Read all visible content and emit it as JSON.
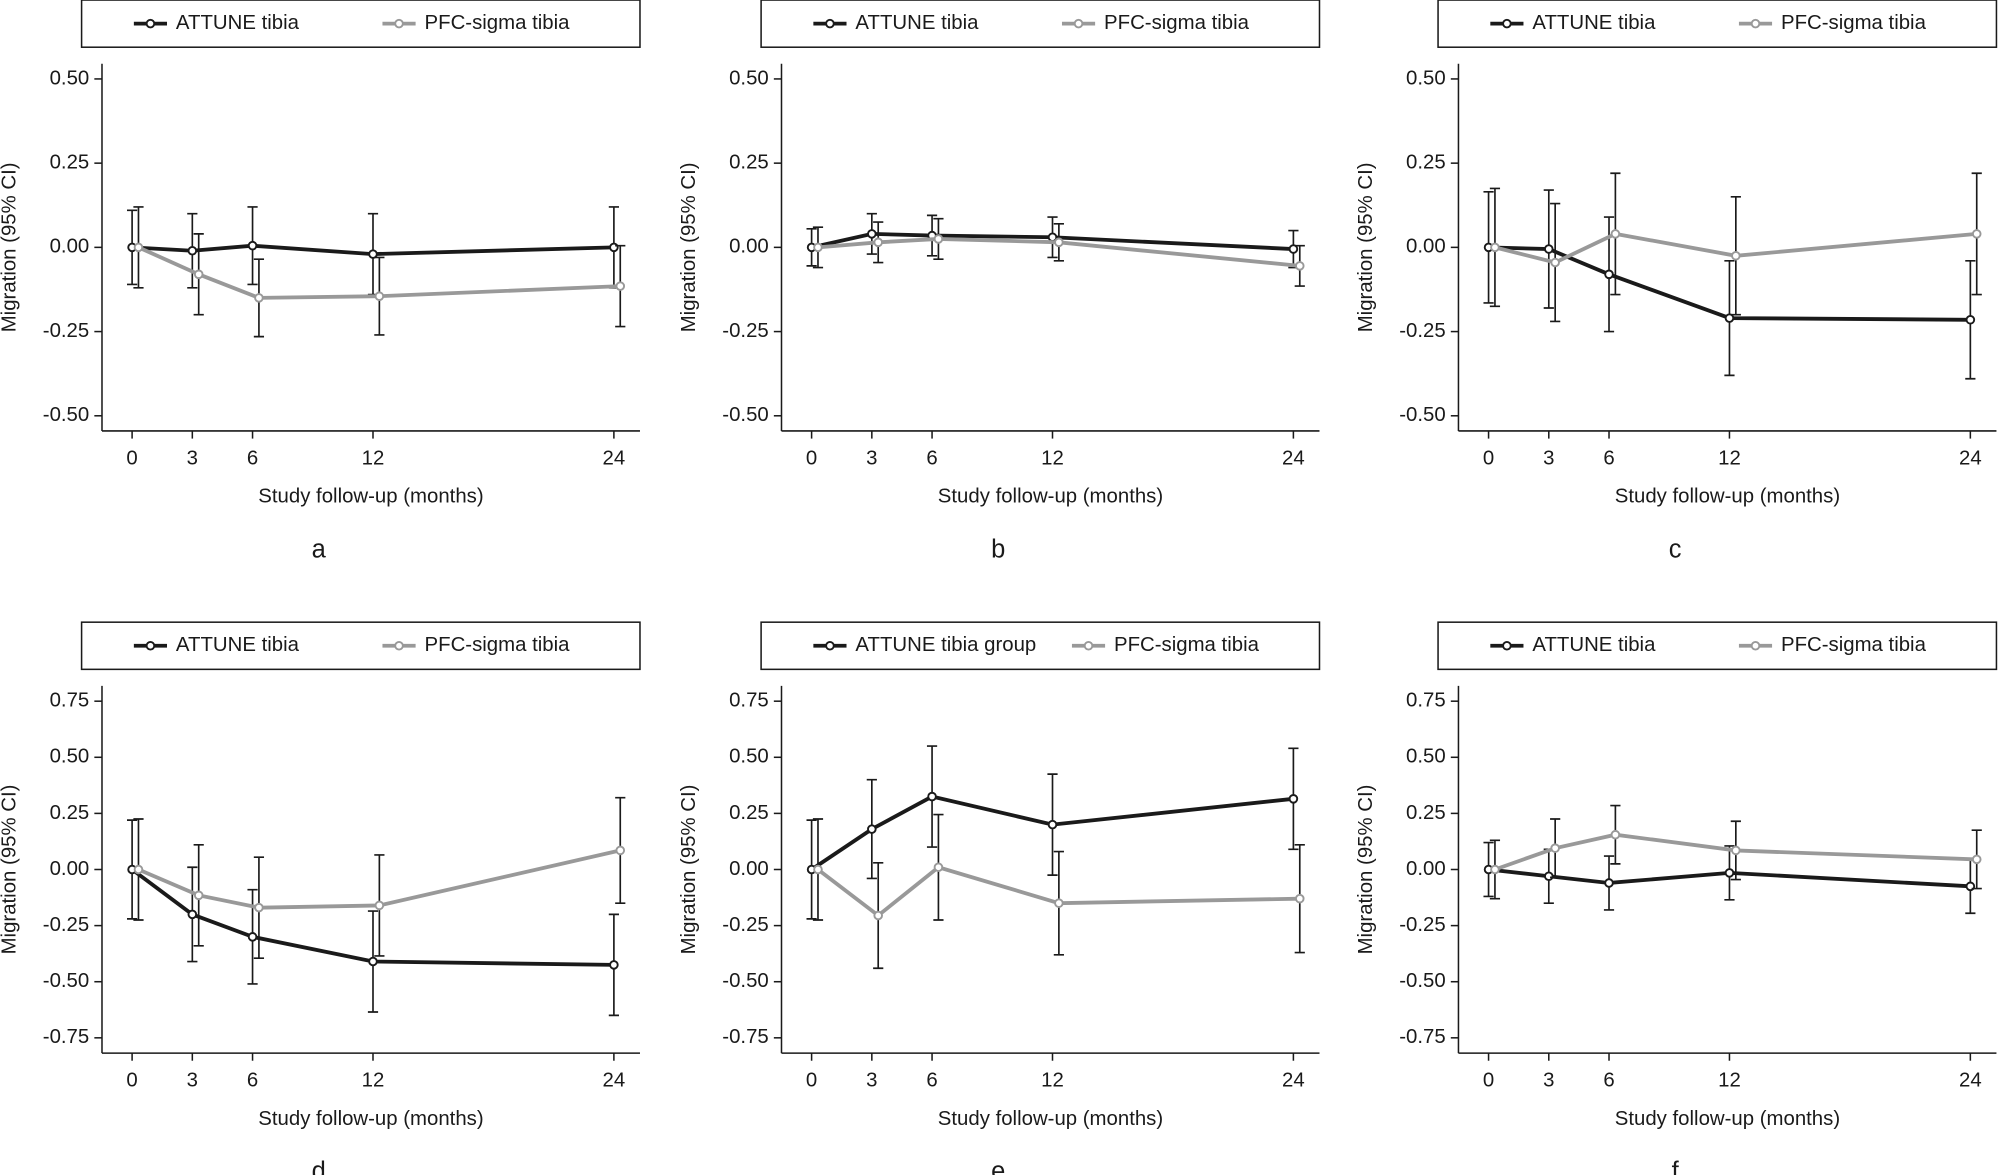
{
  "chart_data": [
    {
      "type": "line",
      "panel": "a",
      "x_label": "Study follow-up (months)",
      "y_label": "Migration (95% CI)",
      "xlim": [
        -1.5,
        25.3
      ],
      "ylim": [
        -0.545,
        0.545
      ],
      "x": [
        0,
        3,
        6,
        12,
        24
      ],
      "xticks": [
        0,
        3,
        6,
        12,
        24
      ],
      "yticks": [
        {
          "value": -0.5,
          "label": "-0.50"
        },
        {
          "value": -0.25,
          "label": "-0.25"
        },
        {
          "value": 0,
          "label": "0.00"
        },
        {
          "value": 0.25,
          "label": "0.25"
        },
        {
          "value": 0.5,
          "label": "0.50"
        }
      ],
      "series": [
        {
          "name": "ATTUNE tibia",
          "color": "#1a1a1a",
          "values": [
            0,
            -0.01,
            0.005,
            -0.02,
            0
          ],
          "errors": [
            0.11,
            0.11,
            0.115,
            0.12,
            0.12
          ]
        },
        {
          "name": "PFC-sigma tibia",
          "color": "#999999",
          "values": [
            0,
            -0.08,
            -0.15,
            -0.145,
            -0.115
          ],
          "errors": [
            0.12,
            0.12,
            0.115,
            0.115,
            0.12
          ]
        }
      ]
    },
    {
      "type": "line",
      "panel": "b",
      "x_label": "Study follow-up (months)",
      "y_label": "Migration (95% CI)",
      "xlim": [
        -1.5,
        25.3
      ],
      "ylim": [
        -0.545,
        0.545
      ],
      "x": [
        0,
        3,
        6,
        12,
        24
      ],
      "xticks": [
        0,
        3,
        6,
        12,
        24
      ],
      "yticks": [
        {
          "value": -0.5,
          "label": "-0.50"
        },
        {
          "value": -0.25,
          "label": "-0.25"
        },
        {
          "value": 0,
          "label": "0.00"
        },
        {
          "value": 0.25,
          "label": "0.25"
        },
        {
          "value": 0.5,
          "label": "0.50"
        }
      ],
      "series": [
        {
          "name": "ATTUNE tibia",
          "color": "#1a1a1a",
          "values": [
            0,
            0.04,
            0.035,
            0.03,
            -0.005
          ],
          "errors": [
            0.055,
            0.06,
            0.06,
            0.06,
            0.055
          ]
        },
        {
          "name": "PFC-sigma tibia",
          "color": "#999999",
          "values": [
            0,
            0.015,
            0.025,
            0.015,
            -0.055
          ],
          "errors": [
            0.06,
            0.06,
            0.06,
            0.055,
            0.06
          ]
        }
      ]
    },
    {
      "type": "line",
      "panel": "c",
      "x_label": "Study follow-up (months)",
      "y_label": "Migration (95% CI)",
      "xlim": [
        -1.5,
        25.3
      ],
      "ylim": [
        -0.545,
        0.545
      ],
      "x": [
        0,
        3,
        6,
        12,
        24
      ],
      "xticks": [
        0,
        3,
        6,
        12,
        24
      ],
      "yticks": [
        {
          "value": -0.5,
          "label": "-0.50"
        },
        {
          "value": -0.25,
          "label": "-0.25"
        },
        {
          "value": 0,
          "label": "0.00"
        },
        {
          "value": 0.25,
          "label": "0.25"
        },
        {
          "value": 0.5,
          "label": "0.50"
        }
      ],
      "series": [
        {
          "name": "ATTUNE tibia",
          "color": "#1a1a1a",
          "values": [
            0,
            -0.005,
            -0.08,
            -0.21,
            -0.215
          ],
          "errors": [
            0.165,
            0.175,
            0.17,
            0.17,
            0.175
          ]
        },
        {
          "name": "PFC-sigma tibia",
          "color": "#999999",
          "values": [
            0,
            -0.045,
            0.04,
            -0.025,
            0.04
          ],
          "errors": [
            0.175,
            0.175,
            0.18,
            0.175,
            0.18
          ]
        }
      ]
    },
    {
      "type": "line",
      "panel": "d",
      "x_label": "Study follow-up (months)",
      "y_label": "Migration (95% CI)",
      "xlim": [
        -1.5,
        25.3
      ],
      "ylim": [
        -0.818,
        0.818
      ],
      "x": [
        0,
        3,
        6,
        12,
        24
      ],
      "xticks": [
        0,
        3,
        6,
        12,
        24
      ],
      "yticks": [
        {
          "value": -0.75,
          "label": "-0.75"
        },
        {
          "value": -0.5,
          "label": "-0.50"
        },
        {
          "value": -0.25,
          "label": "-0.25"
        },
        {
          "value": 0,
          "label": "0.00"
        },
        {
          "value": 0.25,
          "label": "0.25"
        },
        {
          "value": 0.5,
          "label": "0.50"
        },
        {
          "value": 0.75,
          "label": "0.75"
        }
      ],
      "series": [
        {
          "name": "ATTUNE tibia",
          "color": "#1a1a1a",
          "values": [
            0,
            -0.2,
            -0.3,
            -0.41,
            -0.425
          ],
          "errors": [
            0.22,
            0.21,
            0.21,
            0.225,
            0.225
          ]
        },
        {
          "name": "PFC-sigma tibia",
          "color": "#999999",
          "values": [
            0,
            -0.115,
            -0.17,
            -0.16,
            0.085
          ],
          "errors": [
            0.225,
            0.225,
            0.225,
            0.225,
            0.235
          ]
        }
      ]
    },
    {
      "type": "line",
      "panel": "e",
      "x_label": "Study follow-up (months)",
      "y_label": "Migration (95% CI)",
      "xlim": [
        -1.5,
        25.3
      ],
      "ylim": [
        -0.818,
        0.818
      ],
      "x": [
        0,
        3,
        6,
        12,
        24
      ],
      "xticks": [
        0,
        3,
        6,
        12,
        24
      ],
      "yticks": [
        {
          "value": -0.75,
          "label": "-0.75"
        },
        {
          "value": -0.5,
          "label": "-0.50"
        },
        {
          "value": -0.25,
          "label": "-0.25"
        },
        {
          "value": 0,
          "label": "0.00"
        },
        {
          "value": 0.25,
          "label": "0.25"
        },
        {
          "value": 0.5,
          "label": "0.50"
        },
        {
          "value": 0.75,
          "label": "0.75"
        }
      ],
      "series": [
        {
          "name": "ATTUNE tibia group",
          "color": "#1a1a1a",
          "values": [
            0,
            0.18,
            0.325,
            0.2,
            0.315
          ],
          "errors": [
            0.22,
            0.22,
            0.225,
            0.225,
            0.225
          ]
        },
        {
          "name": "PFC-sigma tibia",
          "color": "#999999",
          "values": [
            0,
            -0.205,
            0.01,
            -0.15,
            -0.13
          ],
          "errors": [
            0.225,
            0.235,
            0.235,
            0.23,
            0.24
          ]
        }
      ]
    },
    {
      "type": "line",
      "panel": "f",
      "x_label": "Study follow-up (months)",
      "y_label": "Migration (95% CI)",
      "xlim": [
        -1.5,
        25.3
      ],
      "ylim": [
        -0.818,
        0.818
      ],
      "x": [
        0,
        3,
        6,
        12,
        24
      ],
      "xticks": [
        0,
        3,
        6,
        12,
        24
      ],
      "yticks": [
        {
          "value": -0.75,
          "label": "-0.75"
        },
        {
          "value": -0.5,
          "label": "-0.50"
        },
        {
          "value": -0.25,
          "label": "-0.25"
        },
        {
          "value": 0,
          "label": "0.00"
        },
        {
          "value": 0.25,
          "label": "0.25"
        },
        {
          "value": 0.5,
          "label": "0.50"
        },
        {
          "value": 0.75,
          "label": "0.75"
        }
      ],
      "series": [
        {
          "name": "ATTUNE tibia",
          "color": "#1a1a1a",
          "values": [
            0,
            -0.03,
            -0.06,
            -0.015,
            -0.075
          ],
          "errors": [
            0.12,
            0.12,
            0.12,
            0.12,
            0.12
          ]
        },
        {
          "name": "PFC-sigma tibia",
          "color": "#999999",
          "values": [
            0,
            0.095,
            0.155,
            0.085,
            0.045
          ],
          "errors": [
            0.13,
            0.13,
            0.13,
            0.13,
            0.13
          ]
        }
      ]
    }
  ]
}
